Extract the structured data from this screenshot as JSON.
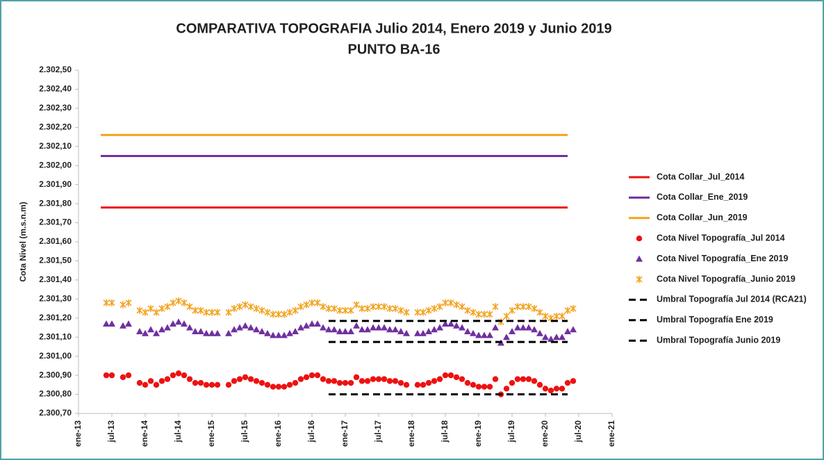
{
  "chart_data": {
    "type": "line",
    "title": "COMPARATIVA TOPOGRAFIA  Julio 2014, Enero 2019 y Junio 2019",
    "subtitle": "PUNTO BA-16",
    "y_label": "Cota Nivel (m.s.n.m)",
    "legend": "right",
    "grid": false,
    "xlim": [
      "2013-01",
      "2021-01"
    ],
    "xticks": [
      {
        "value": "2013-01",
        "label": "ene-13"
      },
      {
        "value": "2013-07",
        "label": "jul-13"
      },
      {
        "value": "2014-01",
        "label": "ene-14"
      },
      {
        "value": "2014-07",
        "label": "jul-14"
      },
      {
        "value": "2015-01",
        "label": "ene-15"
      },
      {
        "value": "2015-07",
        "label": "jul-15"
      },
      {
        "value": "2016-01",
        "label": "ene-16"
      },
      {
        "value": "2016-07",
        "label": "jul-16"
      },
      {
        "value": "2017-01",
        "label": "ene-17"
      },
      {
        "value": "2017-07",
        "label": "jul-17"
      },
      {
        "value": "2018-01",
        "label": "ene-18"
      },
      {
        "value": "2018-07",
        "label": "jul-18"
      },
      {
        "value": "2019-01",
        "label": "ene-19"
      },
      {
        "value": "2019-07",
        "label": "jul-19"
      },
      {
        "value": "2020-01",
        "label": "ene-20"
      },
      {
        "value": "2020-07",
        "label": "jul-20"
      },
      {
        "value": "2021-01",
        "label": "ene-21"
      }
    ],
    "ylim": [
      2300.7,
      2302.5
    ],
    "yticks": [
      {
        "value": 2300.7,
        "label": "2.300,70"
      },
      {
        "value": 2300.8,
        "label": "2.300,80"
      },
      {
        "value": 2300.9,
        "label": "2.300,90"
      },
      {
        "value": 2301.0,
        "label": "2.301,00"
      },
      {
        "value": 2301.1,
        "label": "2.301,10"
      },
      {
        "value": 2301.2,
        "label": "2.301,20"
      },
      {
        "value": 2301.3,
        "label": "2.301,30"
      },
      {
        "value": 2301.4,
        "label": "2.301,40"
      },
      {
        "value": 2301.5,
        "label": "2.301,50"
      },
      {
        "value": 2301.6,
        "label": "2.301,60"
      },
      {
        "value": 2301.7,
        "label": "2.301,70"
      },
      {
        "value": 2301.8,
        "label": "2.301,80"
      },
      {
        "value": 2301.9,
        "label": "2.301,90"
      },
      {
        "value": 2302.0,
        "label": "2.302,00"
      },
      {
        "value": 2302.1,
        "label": "2.302,10"
      },
      {
        "value": 2302.2,
        "label": "2.302,20"
      },
      {
        "value": 2302.3,
        "label": "2.302,30"
      },
      {
        "value": 2302.4,
        "label": "2.302,40"
      },
      {
        "value": 2302.5,
        "label": "2.302,50"
      }
    ],
    "series": [
      {
        "name": "Cota Collar_Jul_2014",
        "type": "line",
        "color": "#ee1111",
        "x": [
          "2013-05",
          "2020-05"
        ],
        "values": [
          2301.78,
          2301.78
        ]
      },
      {
        "name": "Cota Collar_Ene_2019",
        "type": "line",
        "color": "#7030a0",
        "x": [
          "2013-05",
          "2020-05"
        ],
        "values": [
          2302.05,
          2302.05
        ]
      },
      {
        "name": "Cota Collar_Jun_2019",
        "type": "line",
        "color": "#f4a21d",
        "x": [
          "2013-05",
          "2020-05"
        ],
        "values": [
          2302.16,
          2302.16
        ]
      },
      {
        "name": "Cota Nivel Topografía_Jul 2014",
        "type": "scatter",
        "marker": "circle",
        "color": "#ee1111",
        "x": [
          "2013-06",
          "2013-07",
          "2013-09",
          "2013-10",
          "2013-12",
          "2014-01",
          "2014-02",
          "2014-03",
          "2014-04",
          "2014-05",
          "2014-06",
          "2014-07",
          "2014-08",
          "2014-09",
          "2014-10",
          "2014-11",
          "2014-12",
          "2015-01",
          "2015-02",
          "2015-04",
          "2015-05",
          "2015-06",
          "2015-07",
          "2015-08",
          "2015-09",
          "2015-10",
          "2015-11",
          "2015-12",
          "2016-01",
          "2016-02",
          "2016-03",
          "2016-04",
          "2016-05",
          "2016-06",
          "2016-07",
          "2016-08",
          "2016-09",
          "2016-10",
          "2016-11",
          "2016-12",
          "2017-01",
          "2017-02",
          "2017-03",
          "2017-04",
          "2017-05",
          "2017-06",
          "2017-07",
          "2017-08",
          "2017-09",
          "2017-10",
          "2017-11",
          "2017-12",
          "2018-02",
          "2018-03",
          "2018-04",
          "2018-05",
          "2018-06",
          "2018-07",
          "2018-08",
          "2018-09",
          "2018-10",
          "2018-11",
          "2018-12",
          "2019-01",
          "2019-02",
          "2019-03",
          "2019-04",
          "2019-05",
          "2019-06",
          "2019-07",
          "2019-08",
          "2019-09",
          "2019-10",
          "2019-11",
          "2019-12",
          "2020-01",
          "2020-02",
          "2020-03",
          "2020-04",
          "2020-05",
          "2020-06"
        ],
        "values": [
          2300.9,
          2300.9,
          2300.89,
          2300.9,
          2300.86,
          2300.85,
          2300.87,
          2300.85,
          2300.87,
          2300.88,
          2300.9,
          2300.91,
          2300.9,
          2300.88,
          2300.86,
          2300.86,
          2300.85,
          2300.85,
          2300.85,
          2300.85,
          2300.87,
          2300.88,
          2300.89,
          2300.88,
          2300.87,
          2300.86,
          2300.85,
          2300.84,
          2300.84,
          2300.84,
          2300.85,
          2300.86,
          2300.88,
          2300.89,
          2300.9,
          2300.9,
          2300.88,
          2300.87,
          2300.87,
          2300.86,
          2300.86,
          2300.86,
          2300.89,
          2300.87,
          2300.87,
          2300.88,
          2300.88,
          2300.88,
          2300.87,
          2300.87,
          2300.86,
          2300.85,
          2300.85,
          2300.85,
          2300.86,
          2300.87,
          2300.88,
          2300.9,
          2300.9,
          2300.89,
          2300.88,
          2300.86,
          2300.85,
          2300.84,
          2300.84,
          2300.84,
          2300.88,
          2300.8,
          2300.83,
          2300.86,
          2300.88,
          2300.88,
          2300.88,
          2300.87,
          2300.85,
          2300.83,
          2300.82,
          2300.83,
          2300.83,
          2300.86,
          2300.87
        ]
      },
      {
        "name": "Cota Nivel Topografía_Ene 2019",
        "type": "scatter",
        "marker": "triangle",
        "color": "#7030a0",
        "x": [
          "2013-06",
          "2013-07",
          "2013-09",
          "2013-10",
          "2013-12",
          "2014-01",
          "2014-02",
          "2014-03",
          "2014-04",
          "2014-05",
          "2014-06",
          "2014-07",
          "2014-08",
          "2014-09",
          "2014-10",
          "2014-11",
          "2014-12",
          "2015-01",
          "2015-02",
          "2015-04",
          "2015-05",
          "2015-06",
          "2015-07",
          "2015-08",
          "2015-09",
          "2015-10",
          "2015-11",
          "2015-12",
          "2016-01",
          "2016-02",
          "2016-03",
          "2016-04",
          "2016-05",
          "2016-06",
          "2016-07",
          "2016-08",
          "2016-09",
          "2016-10",
          "2016-11",
          "2016-12",
          "2017-01",
          "2017-02",
          "2017-03",
          "2017-04",
          "2017-05",
          "2017-06",
          "2017-07",
          "2017-08",
          "2017-09",
          "2017-10",
          "2017-11",
          "2017-12",
          "2018-02",
          "2018-03",
          "2018-04",
          "2018-05",
          "2018-06",
          "2018-07",
          "2018-08",
          "2018-09",
          "2018-10",
          "2018-11",
          "2018-12",
          "2019-01",
          "2019-02",
          "2019-03",
          "2019-04",
          "2019-05",
          "2019-06",
          "2019-07",
          "2019-08",
          "2019-09",
          "2019-10",
          "2019-11",
          "2019-12",
          "2020-01",
          "2020-02",
          "2020-03",
          "2020-04",
          "2020-05",
          "2020-06"
        ],
        "values": [
          2301.17,
          2301.17,
          2301.16,
          2301.17,
          2301.13,
          2301.12,
          2301.14,
          2301.12,
          2301.14,
          2301.15,
          2301.17,
          2301.18,
          2301.17,
          2301.15,
          2301.13,
          2301.13,
          2301.12,
          2301.12,
          2301.12,
          2301.12,
          2301.14,
          2301.15,
          2301.16,
          2301.15,
          2301.14,
          2301.13,
          2301.12,
          2301.11,
          2301.11,
          2301.11,
          2301.12,
          2301.13,
          2301.15,
          2301.16,
          2301.17,
          2301.17,
          2301.15,
          2301.14,
          2301.14,
          2301.13,
          2301.13,
          2301.13,
          2301.16,
          2301.14,
          2301.14,
          2301.15,
          2301.15,
          2301.15,
          2301.14,
          2301.14,
          2301.13,
          2301.12,
          2301.12,
          2301.12,
          2301.13,
          2301.14,
          2301.15,
          2301.17,
          2301.17,
          2301.16,
          2301.15,
          2301.13,
          2301.12,
          2301.11,
          2301.11,
          2301.11,
          2301.15,
          2301.07,
          2301.1,
          2301.13,
          2301.15,
          2301.15,
          2301.15,
          2301.14,
          2301.12,
          2301.1,
          2301.09,
          2301.1,
          2301.1,
          2301.13,
          2301.14
        ]
      },
      {
        "name": "Cota Nivel Topografía_Junio 2019",
        "type": "scatter",
        "marker": "star",
        "color": "#f4a21d",
        "x": [
          "2013-06",
          "2013-07",
          "2013-09",
          "2013-10",
          "2013-12",
          "2014-01",
          "2014-02",
          "2014-03",
          "2014-04",
          "2014-05",
          "2014-06",
          "2014-07",
          "2014-08",
          "2014-09",
          "2014-10",
          "2014-11",
          "2014-12",
          "2015-01",
          "2015-02",
          "2015-04",
          "2015-05",
          "2015-06",
          "2015-07",
          "2015-08",
          "2015-09",
          "2015-10",
          "2015-11",
          "2015-12",
          "2016-01",
          "2016-02",
          "2016-03",
          "2016-04",
          "2016-05",
          "2016-06",
          "2016-07",
          "2016-08",
          "2016-09",
          "2016-10",
          "2016-11",
          "2016-12",
          "2017-01",
          "2017-02",
          "2017-03",
          "2017-04",
          "2017-05",
          "2017-06",
          "2017-07",
          "2017-08",
          "2017-09",
          "2017-10",
          "2017-11",
          "2017-12",
          "2018-02",
          "2018-03",
          "2018-04",
          "2018-05",
          "2018-06",
          "2018-07",
          "2018-08",
          "2018-09",
          "2018-10",
          "2018-11",
          "2018-12",
          "2019-01",
          "2019-02",
          "2019-03",
          "2019-04",
          "2019-05",
          "2019-06",
          "2019-07",
          "2019-08",
          "2019-09",
          "2019-10",
          "2019-11",
          "2019-12",
          "2020-01",
          "2020-02",
          "2020-03",
          "2020-04",
          "2020-05",
          "2020-06"
        ],
        "values": [
          2301.28,
          2301.28,
          2301.27,
          2301.28,
          2301.24,
          2301.23,
          2301.25,
          2301.23,
          2301.25,
          2301.26,
          2301.28,
          2301.29,
          2301.28,
          2301.26,
          2301.24,
          2301.24,
          2301.23,
          2301.23,
          2301.23,
          2301.23,
          2301.25,
          2301.26,
          2301.27,
          2301.26,
          2301.25,
          2301.24,
          2301.23,
          2301.22,
          2301.22,
          2301.22,
          2301.23,
          2301.24,
          2301.26,
          2301.27,
          2301.28,
          2301.28,
          2301.26,
          2301.25,
          2301.25,
          2301.24,
          2301.24,
          2301.24,
          2301.27,
          2301.25,
          2301.25,
          2301.26,
          2301.26,
          2301.26,
          2301.25,
          2301.25,
          2301.24,
          2301.23,
          2301.23,
          2301.23,
          2301.24,
          2301.25,
          2301.26,
          2301.28,
          2301.28,
          2301.27,
          2301.26,
          2301.24,
          2301.23,
          2301.22,
          2301.22,
          2301.22,
          2301.26,
          2301.18,
          2301.21,
          2301.24,
          2301.26,
          2301.26,
          2301.26,
          2301.25,
          2301.23,
          2301.21,
          2301.2,
          2301.21,
          2301.21,
          2301.24,
          2301.25
        ]
      },
      {
        "name": "Umbral Topografía Jul 2014 (RCA21)",
        "type": "line",
        "dash": true,
        "color": "#000000",
        "x": [
          "2016-10",
          "2020-05"
        ],
        "values": [
          2300.8,
          2300.8
        ]
      },
      {
        "name": "Umbral Topografía Ene 2019",
        "type": "line",
        "dash": true,
        "color": "#000000",
        "x": [
          "2016-10",
          "2020-05"
        ],
        "values": [
          2301.185,
          2301.185
        ]
      },
      {
        "name": "Umbral Topografía Junio 2019",
        "type": "line",
        "dash": true,
        "color": "#000000",
        "x": [
          "2016-10",
          "2020-05"
        ],
        "values": [
          2301.075,
          2301.075
        ]
      }
    ]
  }
}
